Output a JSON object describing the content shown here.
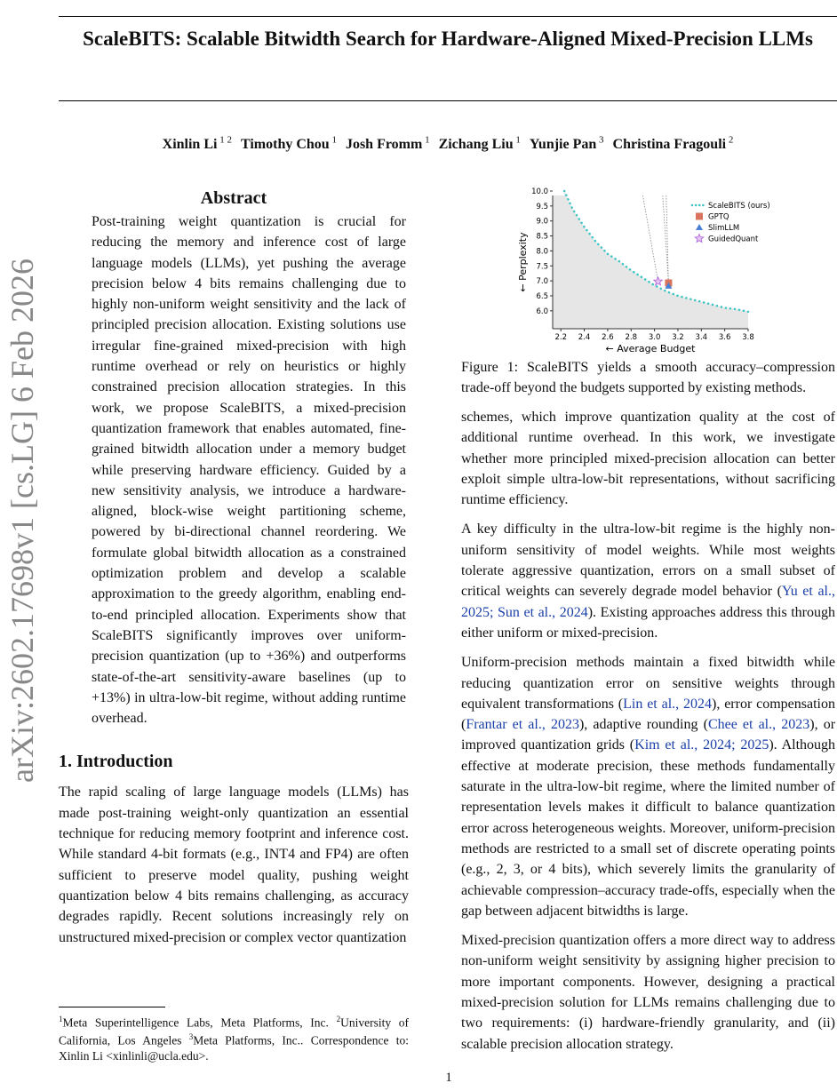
{
  "title": "ScaleBITS: Scalable Bitwidth Search for Hardware-Aligned Mixed-Precision LLMs",
  "authors": [
    {
      "name": "Xinlin Li",
      "aff": "1 2"
    },
    {
      "name": "Timothy Chou",
      "aff": "1"
    },
    {
      "name": "Josh Fromm",
      "aff": "1"
    },
    {
      "name": "Zichang Liu",
      "aff": "1"
    },
    {
      "name": "Yunjie Pan",
      "aff": "3"
    },
    {
      "name": "Christina Fragouli",
      "aff": "2"
    }
  ],
  "arxiv_stamp": "arXiv:2602.17698v1  [cs.LG]  6 Feb 2026",
  "abstract": {
    "heading": "Abstract",
    "text": "Post-training weight quantization is crucial for reducing the memory and inference cost of large language models (LLMs), yet pushing the average precision below 4 bits remains challenging due to highly non-uniform weight sensitivity and the lack of principled precision allocation. Existing solutions use irregular fine-grained mixed-precision with high runtime overhead or rely on heuristics or highly constrained precision allocation strategies. In this work, we propose ScaleBITS, a mixed-precision quantization framework that enables automated, fine-grained bitwidth allocation under a memory budget while preserving hardware efficiency. Guided by a new sensitivity analysis, we introduce a hardware-aligned, block-wise weight partitioning scheme, powered by bi-directional channel reordering. We formulate global bitwidth allocation as a constrained optimization problem and develop a scalable approximation to the greedy algorithm, enabling end-to-end principled allocation. Experiments show that ScaleBITS significantly improves over uniform-precision quantization (up to +36%) and outperforms state-of-the-art sensitivity-aware baselines (up to +13%) in ultra-low-bit regime, without adding runtime overhead."
  },
  "intro": {
    "heading": "1. Introduction",
    "text": "The rapid scaling of large language models (LLMs) has made post-training weight-only quantization an essential technique for reducing memory footprint and inference cost. While standard 4-bit formats (e.g., INT4 and FP4) are often sufficient to preserve model quality, pushing weight quantization below 4 bits remains challenging, as accuracy degrades rapidly. Recent solutions increasingly rely on unstructured mixed-precision or complex vector quantization"
  },
  "footnote": {
    "p1": "Meta Superintelligence Labs, Meta Platforms, Inc. ",
    "p2": "University of California, Los Angeles ",
    "p3": "Meta Platforms, Inc.. Correspondence to: Xinlin Li <xinlinli@ucla.edu>.",
    "s1": "1",
    "s2": "2",
    "s3": "3"
  },
  "caption": "Figure 1: ScaleBITS yields a smooth accuracy–compression trade-off beyond the budgets supported by existing methods.",
  "right": {
    "p1": "schemes, which improve quantization quality at the cost of additional runtime overhead. In this work, we investigate whether more principled mixed-precision allocation can better exploit simple ultra-low-bit representations, without sacrificing runtime efficiency.",
    "p2a": "A key difficulty in the ultra-low-bit regime is the highly non-uniform sensitivity of model weights. While most weights tolerate aggressive quantization, errors on a small subset of critical weights can severely degrade model behavior (",
    "p2c": "Yu et al., 2025; Sun et al., 2024",
    "p2b": "). Existing approaches address this through either uniform or mixed-precision.",
    "p3a": "Uniform-precision methods maintain a fixed bitwidth while reducing quantization error on sensitive weights through equivalent transformations (",
    "p3c1": "Lin et al., 2024",
    "p3b": "), error compensation (",
    "p3c2": "Frantar et al., 2023",
    "p3d": "), adaptive rounding (",
    "p3c3": "Chee et al., 2023",
    "p3e": "), or improved quantization grids (",
    "p3c4": "Kim et al., 2024; 2025",
    "p3f": "). Although effective at moderate precision, these methods fundamentally saturate in the ultra-low-bit regime, where the limited number of representation levels makes it difficult to balance quantization error across heterogeneous weights. Moreover, uniform-precision methods are restricted to a small set of discrete operating points (e.g., 2, 3, or 4 bits), which severely limits the granularity of achievable compression–accuracy trade-offs, especially when the gap between adjacent bitwidths is large.",
    "p4": "Mixed-precision quantization offers a more direct way to address non-uniform weight sensitivity by assigning higher precision to more important components. However, designing a practical mixed-precision solution for LLMs remains challenging due to two requirements: (i) hardware-friendly granularity, and (ii) scalable precision allocation strategy."
  },
  "page_number": "1",
  "chart_data": {
    "type": "line",
    "xlabel": "← Average Budget",
    "ylabel": "← Perplexity",
    "xlim": [
      2.13,
      3.8
    ],
    "ylim": [
      5.55,
      10.0
    ],
    "xticks": [
      "2.2",
      "2.4",
      "2.6",
      "2.8",
      "3.0",
      "3.2",
      "3.4",
      "3.6",
      "3.8"
    ],
    "yticks": [
      "6.0",
      "6.5",
      "7.0",
      "7.5",
      "8.0",
      "8.5",
      "9.0",
      "9.5",
      "10.0"
    ],
    "legend_position": "top-right",
    "series": [
      {
        "name": "ScaleBITS (ours)",
        "color": "#3cc4c4",
        "marker": "dotted-line",
        "x": [
          2.23,
          2.3,
          2.4,
          2.5,
          2.6,
          2.7,
          2.8,
          2.9,
          3.0,
          3.1,
          3.2,
          3.3,
          3.4,
          3.5,
          3.6,
          3.7,
          3.8
        ],
        "y": [
          10.0,
          9.4,
          8.8,
          8.3,
          7.9,
          7.65,
          7.35,
          7.1,
          6.85,
          6.65,
          6.5,
          6.4,
          6.3,
          6.2,
          6.1,
          6.05,
          5.97
        ]
      },
      {
        "name": "GPTQ",
        "color": "#d9735e",
        "marker": "square",
        "x": [
          3.12
        ],
        "y": [
          6.93
        ]
      },
      {
        "name": "SlimLLM",
        "color": "#4a7fd6",
        "marker": "triangle",
        "x": [
          3.12
        ],
        "y": [
          6.83
        ]
      },
      {
        "name": "GuidedQuant",
        "color": "#b36ad8",
        "marker": "star",
        "x": [
          3.03
        ],
        "y": [
          6.98
        ]
      }
    ],
    "fill_below_curve_color": "#e6e6e6"
  }
}
